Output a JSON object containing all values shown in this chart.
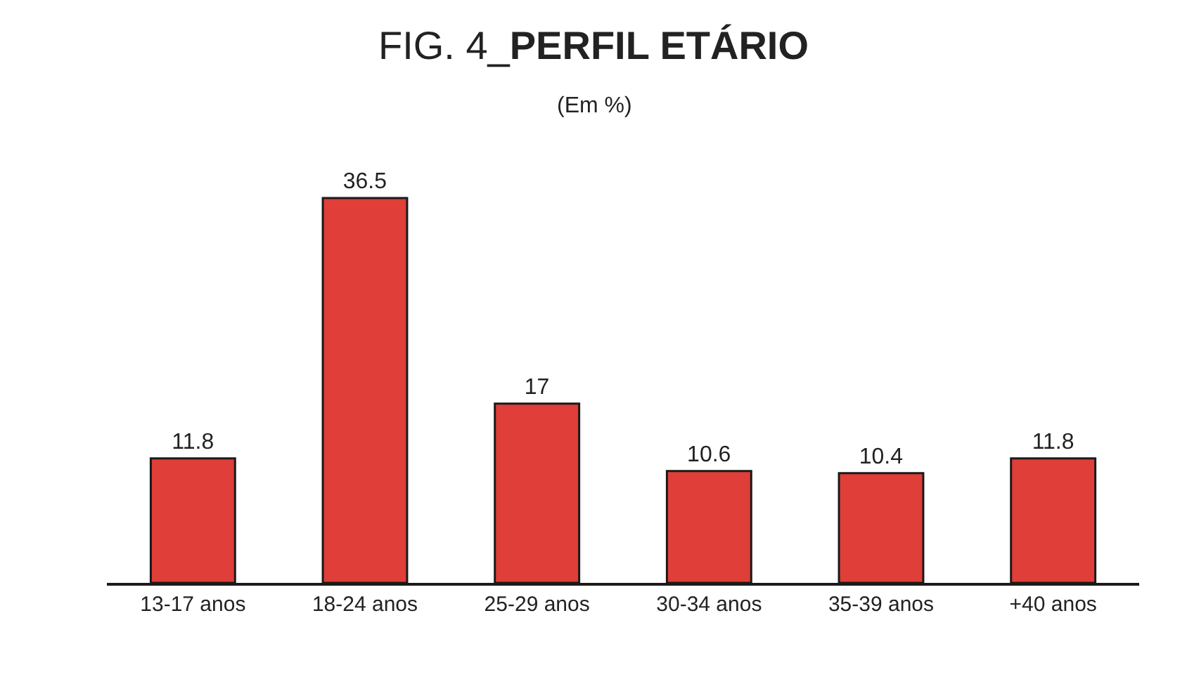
{
  "chart_data": {
    "type": "bar",
    "title": "FIG. 4_PERFIL ETÁRIO",
    "subtitle": "(Em %)",
    "categories": [
      "13-17 anos",
      "18-24 anos",
      "25-29 anos",
      "30-34 anos",
      "35-39 anos",
      "+40 anos"
    ],
    "values": [
      11.8,
      36.5,
      17,
      10.6,
      10.4,
      11.8
    ],
    "color": "#e03e38",
    "data_labels": true
  }
}
